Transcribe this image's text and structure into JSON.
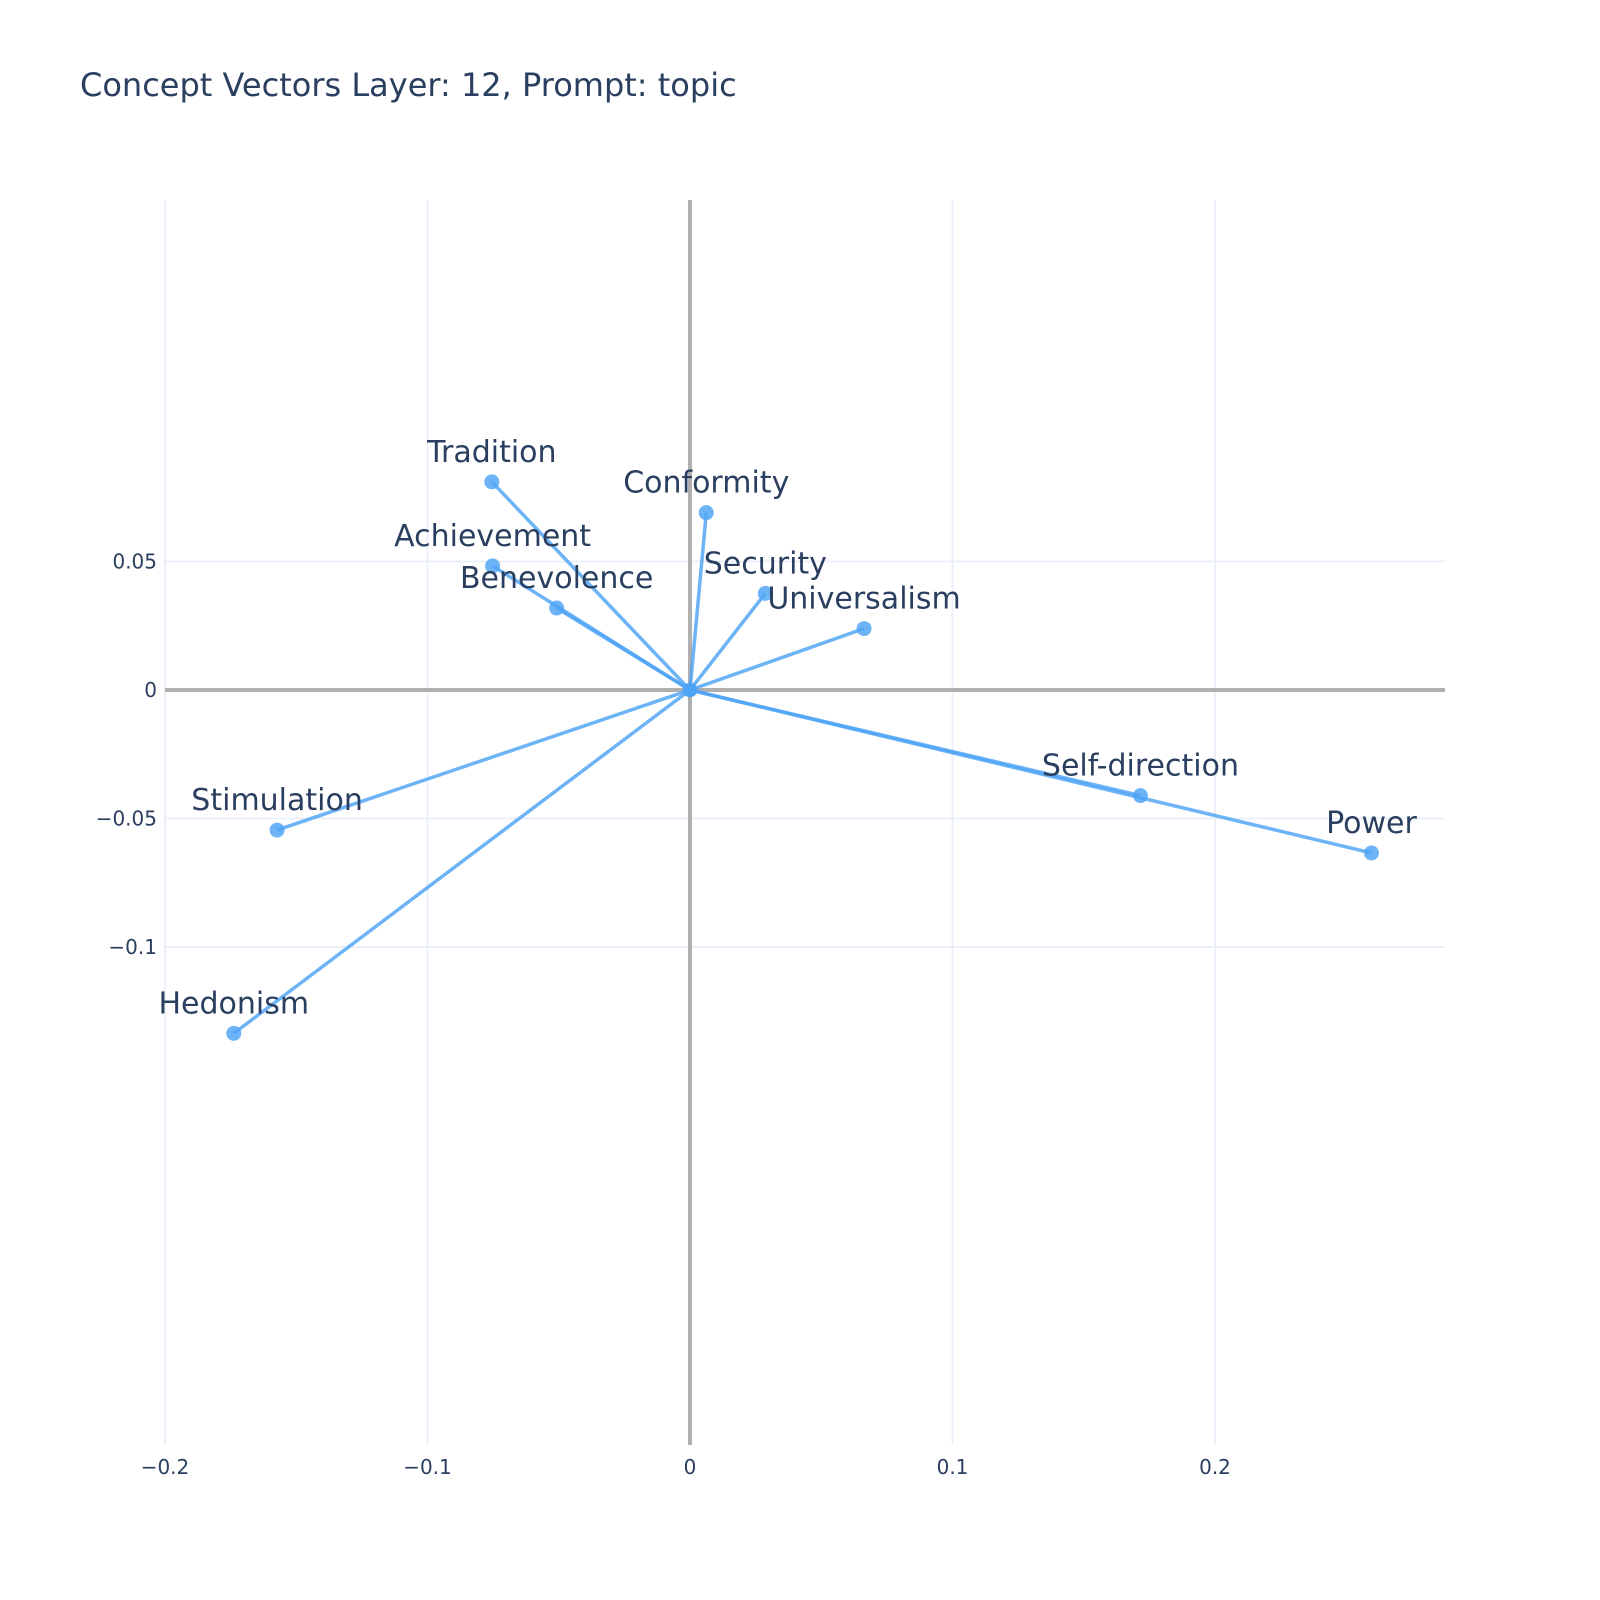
{
  "chart_data": {
    "type": "scatter",
    "title": "Concept Vectors Layer: 12, Prompt: topic",
    "xlabel": "",
    "ylabel": "",
    "xlim": [
      -0.2,
      0.288
    ],
    "ylim": [
      -0.147,
      0.095
    ],
    "x_ticks": [
      {
        "value": -0.2,
        "label": "−0.2"
      },
      {
        "value": -0.1,
        "label": "−0.1"
      },
      {
        "value": 0,
        "label": "0"
      },
      {
        "value": 0.1,
        "label": "0.1"
      },
      {
        "value": 0.2,
        "label": "0.2"
      }
    ],
    "y_ticks": [
      {
        "value": 0.05,
        "label": "0.05"
      },
      {
        "value": 0,
        "label": "0"
      },
      {
        "value": -0.05,
        "label": "−0.05"
      },
      {
        "value": -0.1,
        "label": "−0.1"
      }
    ],
    "grid": true,
    "origin": [
      0,
      0
    ],
    "color": "#4da3f5",
    "points": [
      {
        "label": "Tradition",
        "x": -0.0755,
        "y": 0.081
      },
      {
        "label": "Conformity",
        "x": 0.0062,
        "y": 0.069
      },
      {
        "label": "Achievement",
        "x": -0.0752,
        "y": 0.0483
      },
      {
        "label": "Security",
        "x": 0.0287,
        "y": 0.0376
      },
      {
        "label": "Benevolence",
        "x": -0.0508,
        "y": 0.0319
      },
      {
        "label": "Universalism",
        "x": 0.0663,
        "y": 0.0239
      },
      {
        "label": "Self-direction",
        "x": 0.1716,
        "y": -0.0411
      },
      {
        "label": "Power",
        "x": 0.2596,
        "y": -0.0634
      },
      {
        "label": "Stimulation",
        "x": -0.1573,
        "y": -0.0545
      },
      {
        "label": "Hedonism",
        "x": -0.1738,
        "y": -0.1336
      }
    ]
  }
}
